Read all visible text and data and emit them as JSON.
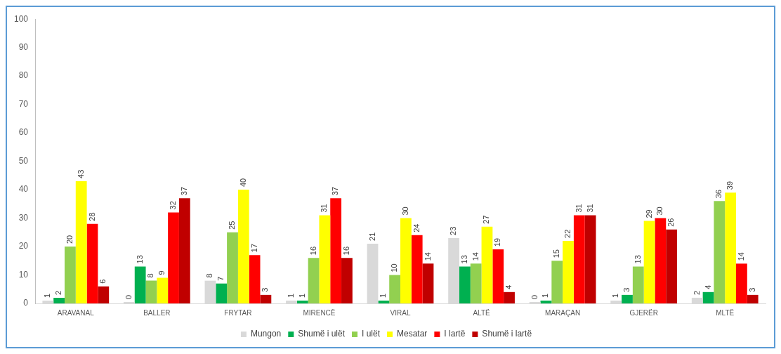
{
  "chart_data": {
    "type": "bar",
    "categories": [
      "ARAVANAL",
      "BALLER",
      "FRYTAR",
      "MIRENCË",
      "VIRAL",
      "ALTË",
      "MARAÇAN",
      "GJERËR",
      "MLTË"
    ],
    "series": [
      {
        "name": "Mungon",
        "color": "#d9d9d9",
        "values": [
          1,
          0,
          8,
          1,
          21,
          23,
          0,
          1,
          2
        ]
      },
      {
        "name": "Shumë i ulët",
        "color": "#00b050",
        "values": [
          2,
          13,
          7,
          1,
          1,
          13,
          1,
          3,
          4
        ]
      },
      {
        "name": "I ulët",
        "color": "#92d050",
        "values": [
          20,
          8,
          25,
          16,
          10,
          14,
          15,
          13,
          36
        ]
      },
      {
        "name": "Mesatar",
        "color": "#ffff00",
        "values": [
          43,
          9,
          40,
          31,
          30,
          27,
          22,
          29,
          39
        ]
      },
      {
        "name": "I lartë",
        "color": "#ff0000",
        "values": [
          28,
          32,
          17,
          37,
          24,
          19,
          31,
          30,
          14
        ]
      },
      {
        "name": "Shumë i lartë",
        "color": "#c00000",
        "values": [
          6,
          37,
          3,
          16,
          14,
          4,
          31,
          26,
          3
        ]
      }
    ],
    "ylim": [
      0,
      100
    ],
    "yticks": [
      0,
      10,
      20,
      30,
      40,
      50,
      60,
      70,
      80,
      90,
      100
    ],
    "grid": false,
    "legend": "bottom",
    "data_labels": true
  }
}
